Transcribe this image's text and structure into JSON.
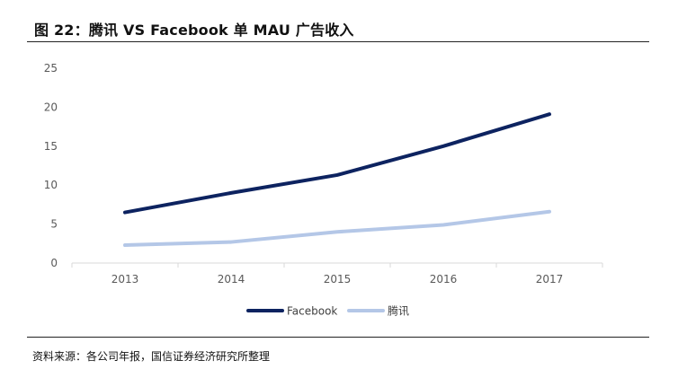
{
  "figure": {
    "title": "图 22：腾讯 VS Facebook 单 MAU 广告收入",
    "source": "资料来源：各公司年报，国信证券经济研究所整理"
  },
  "colors": {
    "facebook": "#0d2360",
    "tencent": "#b4c7e7",
    "axis": "#d9d9d9",
    "tick_text": "#595959"
  },
  "chart_data": {
    "type": "line",
    "x": [
      "2013",
      "2014",
      "2015",
      "2016",
      "2017"
    ],
    "ylim": [
      0,
      25
    ],
    "yticks": [
      "0",
      "5",
      "10",
      "15",
      "20",
      "25"
    ],
    "grid": false,
    "legend_position": "bottom",
    "series": [
      {
        "name": "Facebook",
        "values": [
          6.5,
          9.0,
          11.3,
          15.0,
          19.1
        ]
      },
      {
        "name": "腾讯",
        "values": [
          2.3,
          2.7,
          4.0,
          4.9,
          6.6
        ]
      }
    ]
  }
}
